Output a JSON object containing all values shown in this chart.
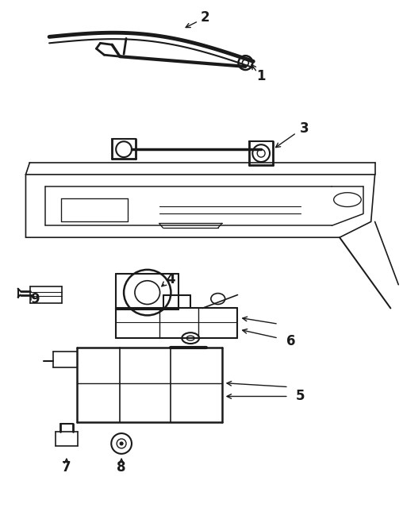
{
  "bg_color": "#ffffff",
  "line_color": "#1a1a1a",
  "line_width": 1.2,
  "figsize": [
    5.08,
    6.49
  ],
  "dpi": 100
}
